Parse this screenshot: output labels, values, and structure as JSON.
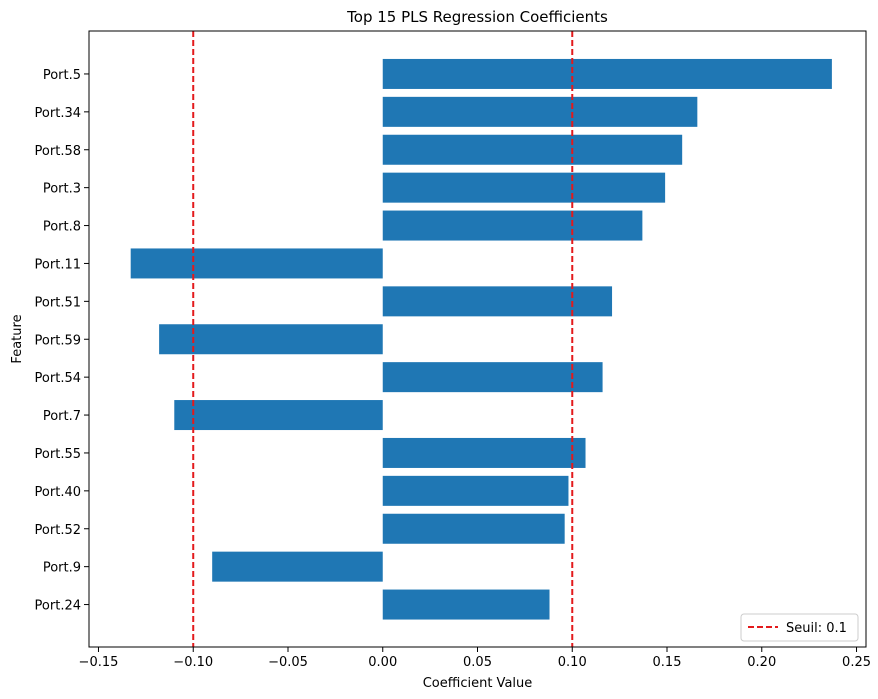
{
  "chart_data": {
    "type": "bar",
    "orientation": "horizontal",
    "title": "Top 15 PLS Regression Coefficients",
    "xlabel": "Coefficient Value",
    "ylabel": "Feature",
    "categories": [
      "Port.5",
      "Port.34",
      "Port.58",
      "Port.3",
      "Port.8",
      "Port.11",
      "Port.51",
      "Port.59",
      "Port.54",
      "Port.7",
      "Port.55",
      "Port.40",
      "Port.52",
      "Port.9",
      "Port.24"
    ],
    "values": [
      0.237,
      0.166,
      0.158,
      0.149,
      0.137,
      -0.133,
      0.121,
      -0.118,
      0.116,
      -0.11,
      0.107,
      0.098,
      0.096,
      -0.09,
      0.088
    ],
    "xlim": [
      -0.155,
      0.255
    ],
    "xticks": [
      -0.15,
      -0.1,
      -0.05,
      0.0,
      0.05,
      0.1,
      0.15,
      0.2,
      0.25
    ],
    "xtick_labels": [
      "−0.15",
      "−0.10",
      "−0.05",
      "0.00",
      "0.05",
      "0.10",
      "0.15",
      "0.20",
      "0.25"
    ],
    "bar_color": "#1f77b4",
    "threshold": {
      "values": [
        -0.1,
        0.1
      ],
      "color": "#e31a1c",
      "label": "Seuil: 0.1",
      "style": "dashed"
    },
    "legend": {
      "placement": "bottom-right"
    },
    "grid": false
  }
}
